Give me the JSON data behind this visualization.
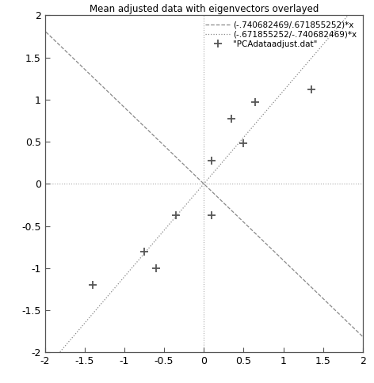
{
  "title": "Mean adjusted data with eigenvectors overlayed",
  "xlim": [
    -2,
    2
  ],
  "ylim": [
    -2,
    2
  ],
  "xticks": [
    -2,
    -1.5,
    -1,
    -0.5,
    0,
    0.5,
    1,
    1.5,
    2
  ],
  "yticks": [
    -2,
    -1.5,
    -1,
    -0.5,
    0,
    0.5,
    1,
    1.5,
    2
  ],
  "data_points": [
    [
      -1.4,
      -1.2
    ],
    [
      -0.75,
      -0.8
    ],
    [
      -0.6,
      -1.0
    ],
    [
      -0.35,
      -0.37
    ],
    [
      0.1,
      -0.37
    ],
    [
      0.1,
      0.28
    ],
    [
      0.35,
      0.77
    ],
    [
      0.5,
      0.48
    ],
    [
      0.65,
      0.97
    ],
    [
      1.35,
      1.12
    ]
  ],
  "legend_data_label": "\"PCAdataadjust.dat\"",
  "legend_line1_label": "(-.740682469/.671855252)*x",
  "legend_line2_label": "(-.671855252/-.740682469)*x",
  "data_color": "#555555",
  "line_color": "#888888",
  "background_color": "#ffffff",
  "figsize": [
    4.72,
    4.84
  ],
  "dpi": 100
}
